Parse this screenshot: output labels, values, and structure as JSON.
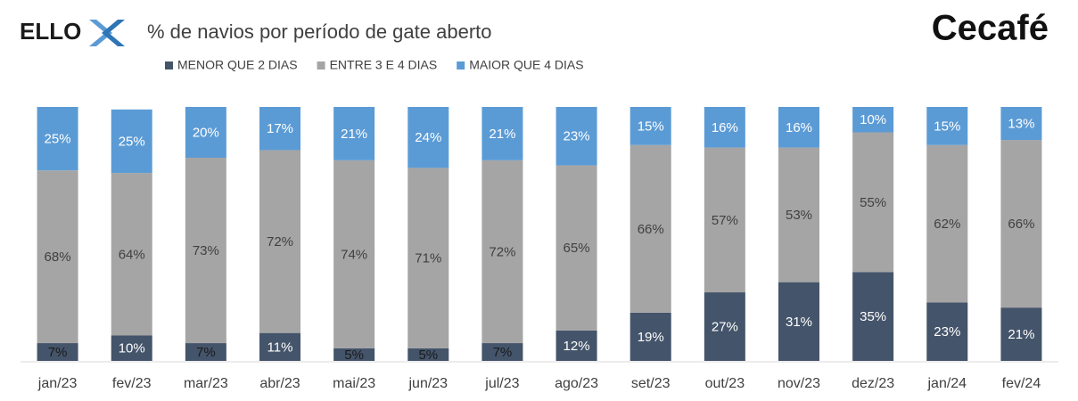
{
  "logo_left": "ELLO",
  "logo_right": "Cecafé",
  "chart_data": {
    "type": "stacked_bar",
    "title": "% de navios por período de gate aberto",
    "categories": [
      "jan/23",
      "fev/23",
      "mar/23",
      "abr/23",
      "mai/23",
      "jun/23",
      "jul/23",
      "ago/23",
      "set/23",
      "out/23",
      "nov/23",
      "dez/23",
      "jan/24",
      "fev/24"
    ],
    "series": [
      {
        "name": "MENOR QUE 2 DIAS",
        "color": "#44546a",
        "values": [
          7,
          10,
          7,
          11,
          5,
          5,
          7,
          12,
          19,
          27,
          31,
          35,
          23,
          21
        ],
        "value_labels": [
          "7%",
          "10%",
          "7%",
          "11%",
          "5%",
          "5%",
          "7%",
          "12%",
          "19%",
          "27%",
          "31%",
          "35%",
          "23%",
          "21%"
        ]
      },
      {
        "name": "ENTRE 3 E 4 DIAS",
        "color": "#a5a5a5",
        "values": [
          68,
          64,
          73,
          72,
          74,
          71,
          72,
          65,
          66,
          57,
          53,
          55,
          62,
          66
        ],
        "value_labels": [
          "68%",
          "64%",
          "73%",
          "72%",
          "74%",
          "71%",
          "72%",
          "65%",
          "66%",
          "57%",
          "53%",
          "55%",
          "62%",
          "66%"
        ]
      },
      {
        "name": "MAIOR QUE 4 DIAS",
        "color": "#5b9bd5",
        "values": [
          25,
          25,
          20,
          17,
          21,
          24,
          21,
          23,
          15,
          16,
          16,
          10,
          15,
          13
        ],
        "value_labels": [
          "25%",
          "25%",
          "20%",
          "17%",
          "21%",
          "24%",
          "21%",
          "23%",
          "15%",
          "16%",
          "16%",
          "10%",
          "15%",
          "13%"
        ]
      }
    ],
    "ylim": [
      0,
      100
    ]
  }
}
